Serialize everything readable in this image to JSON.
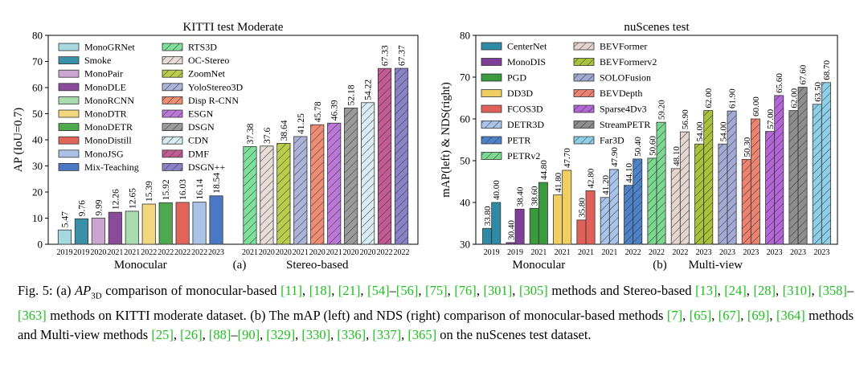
{
  "caption": {
    "fig_label": "Fig. 5:",
    "part_a_open": "(a)",
    "ap_symbol": "AP",
    "ap_subscript": "3D",
    "part_a_text_1": "comparison of monocular-based",
    "refs_mono_kitti": [
      "[11]",
      "[18]",
      "[21]",
      "[54]",
      "–",
      "[56]",
      "[75]",
      "[76]",
      "[301]",
      "[305]"
    ],
    "part_a_text_2": "methods and Stereo-based",
    "refs_stereo_kitti": [
      "[13]",
      "[24]",
      "[28]",
      "[310]",
      "[358]",
      "–",
      "[363]"
    ],
    "part_a_text_3": "methods on KITTI moderate dataset.",
    "part_b_text_1": "(b) The mAP (left) and NDS (right) comparison of monocular-based methods",
    "refs_mono_nus": [
      "[7]",
      "[65]",
      "[67]",
      "[69]",
      "[364]"
    ],
    "part_b_text_2": "methods and Multi-view methods",
    "refs_mv_nus": [
      "[25]",
      "[26]",
      "[88]",
      "–",
      "[90]",
      "[329]",
      "[330]",
      "[336]",
      "[337]",
      "[365]"
    ],
    "part_b_text_3": "on the nuScenes test dataset."
  },
  "chart_data": [
    {
      "type": "bar",
      "title": "KITTI test Moderate",
      "ylabel": "AP (IoU=0.7)",
      "ylim": [
        0,
        80
      ],
      "yticks": [
        0,
        10,
        20,
        30,
        40,
        50,
        60,
        70,
        80
      ],
      "panel_label": "(a)",
      "groups": [
        {
          "name": "Monocular",
          "start": 0,
          "end": 9
        },
        {
          "name": "Stereo-based",
          "start": 10,
          "end": 20
        }
      ],
      "bars": [
        {
          "name": "MonoGRNet",
          "year": "2019",
          "value": 5.47,
          "label": "5.47",
          "color": "#a6d8e0",
          "hatch": "none"
        },
        {
          "name": "Smoke",
          "year": "2019",
          "value": 9.76,
          "label": "9.76",
          "color": "#3a90a8",
          "hatch": "none"
        },
        {
          "name": "MonoPair",
          "year": "2020",
          "value": 9.99,
          "label": "9.99",
          "color": "#c9a5cf",
          "hatch": "none"
        },
        {
          "name": "MonoDLE",
          "year": "2021",
          "value": 12.26,
          "label": "12.26",
          "color": "#8a4b9a",
          "hatch": "none"
        },
        {
          "name": "MonoRCNN",
          "year": "2021",
          "value": 12.65,
          "label": "12.65",
          "color": "#a8dcae",
          "hatch": "none"
        },
        {
          "name": "MonoDTR",
          "year": "2022",
          "value": 15.39,
          "label": "15.39",
          "color": "#f3d77e",
          "hatch": "none"
        },
        {
          "name": "MonoDETR",
          "year": "2022",
          "value": 15.92,
          "label": "15.92",
          "color": "#4ea84e",
          "hatch": "none"
        },
        {
          "name": "MonoDistill",
          "year": "2022",
          "value": 16.03,
          "label": "16.03",
          "color": "#e0645a",
          "hatch": "none"
        },
        {
          "name": "MonoJSG",
          "year": "2022",
          "value": 16.14,
          "label": "16.14",
          "color": "#a9c2e5",
          "hatch": "none"
        },
        {
          "name": "Mix-Teaching",
          "year": "2023",
          "value": 18.54,
          "label": "18.54",
          "color": "#4a78c4",
          "hatch": "none"
        },
        {
          "name": "",
          "year": "",
          "value": 0.0,
          "label": "",
          "color": "#ffffff",
          "hatch": "none"
        },
        {
          "name": "RTS3D",
          "year": "2021",
          "value": 37.38,
          "label": "37.38",
          "color": "#7ee09a",
          "hatch": "diag"
        },
        {
          "name": "OC-Stereo",
          "year": "2020",
          "value": 37.6,
          "label": "37.6",
          "color": "#e8dcd6",
          "hatch": "diag"
        },
        {
          "name": "ZoomNet",
          "year": "2020",
          "value": 38.64,
          "label": "38.64",
          "color": "#b9cd4a",
          "hatch": "diag"
        },
        {
          "name": "YoloStereo3D",
          "year": "2021",
          "value": 41.25,
          "label": "41.25",
          "color": "#aab4d8",
          "hatch": "diag"
        },
        {
          "name": "Disp R-CNN",
          "year": "2020",
          "value": 45.78,
          "label": "45.78",
          "color": "#ee8c74",
          "hatch": "diag"
        },
        {
          "name": "ESGN",
          "year": "2021",
          "value": 46.39,
          "label": "46.39",
          "color": "#bb78d8",
          "hatch": "diag"
        },
        {
          "name": "DSGN",
          "year": "2020",
          "value": 52.18,
          "label": "52.18",
          "color": "#9a9a9a",
          "hatch": "diag"
        },
        {
          "name": "CDN",
          "year": "2020",
          "value": 54.22,
          "label": "54.22",
          "color": "#d8eef4",
          "hatch": "diag"
        },
        {
          "name": "DMF",
          "year": "2022",
          "value": 67.33,
          "label": "67.33",
          "color": "#c25b93",
          "hatch": "diag"
        },
        {
          "name": "DSGN++",
          "year": "2022",
          "value": 67.37,
          "label": "67.37",
          "color": "#8a82c8",
          "hatch": "diag"
        }
      ],
      "legend_col1": [
        "MonoGRNet",
        "Smoke",
        "MonoPair",
        "MonoDLE",
        "MonoRCNN",
        "MonoDTR",
        "MonoDETR",
        "MonoDistill",
        "MonoJSG",
        "Mix-Teaching"
      ],
      "legend_col2": [
        "RTS3D",
        "OC-Stereo",
        "ZoomNet",
        "YoloStereo3D",
        "Disp R-CNN",
        "ESGN",
        "DSGN",
        "CDN",
        "DMF",
        "DSGN++"
      ]
    },
    {
      "type": "bar",
      "title": "nuScenes test",
      "ylabel": "mAP(left) & NDS(right)",
      "ylim": [
        30,
        80
      ],
      "yticks": [
        30,
        40,
        50,
        60,
        70,
        80
      ],
      "panel_label": "(b)",
      "groups": [
        {
          "name": "Monocular",
          "start": 0,
          "end": 4
        },
        {
          "name": "Multi-view",
          "start": 5,
          "end": 14
        }
      ],
      "methods": [
        {
          "name": "CenterNet",
          "year": "2019",
          "map": 33.8,
          "nds": 40.0,
          "map_label": "33.80",
          "nds_label": "40.00",
          "color": "#2f8aa6",
          "hatch": "none"
        },
        {
          "name": "MonoDIS",
          "year": "2019",
          "map": 30.4,
          "nds": 38.4,
          "map_label": "30.40",
          "nds_label": "38.40",
          "color": "#80409a",
          "hatch": "none"
        },
        {
          "name": "PGD",
          "year": "2021",
          "map": 38.6,
          "nds": 44.8,
          "map_label": "38.60",
          "nds_label": "44.80",
          "color": "#3a9a3e",
          "hatch": "none"
        },
        {
          "name": "DD3D",
          "year": "2021",
          "map": 41.8,
          "nds": 47.7,
          "map_label": "41.80",
          "nds_label": "47.70",
          "color": "#f0cf62",
          "hatch": "none"
        },
        {
          "name": "FCOS3D",
          "year": "2021",
          "map": 35.8,
          "nds": 42.8,
          "map_label": "35.80",
          "nds_label": "42.80",
          "color": "#e0615a",
          "hatch": "none"
        },
        {
          "name": "DETR3D",
          "year": "2021",
          "map": 41.2,
          "nds": 47.9,
          "map_label": "41.20",
          "nds_label": "47.90",
          "color": "#a8c4ea",
          "hatch": "diag"
        },
        {
          "name": "PETR",
          "year": "2022",
          "map": 44.1,
          "nds": 50.4,
          "map_label": "44.10",
          "nds_label": "50.40",
          "color": "#4e82c8",
          "hatch": "diag"
        },
        {
          "name": "PETRv2",
          "year": "2022",
          "map": 50.6,
          "nds": 59.2,
          "map_label": "50.60",
          "nds_label": "59.20",
          "color": "#7ad890",
          "hatch": "diag"
        },
        {
          "name": "BEVFormer",
          "year": "2022",
          "map": 48.1,
          "nds": 56.9,
          "map_label": "48.10",
          "nds_label": "56.90",
          "color": "#e4d6ce",
          "hatch": "diag"
        },
        {
          "name": "BEVFormerv2",
          "year": "2023",
          "map": 54.0,
          "nds": 62.0,
          "map_label": "54.00",
          "nds_label": "62.00",
          "color": "#a8c23a",
          "hatch": "diag"
        },
        {
          "name": "SOLOFusion",
          "year": "2023",
          "map": 54.0,
          "nds": 61.9,
          "map_label": "54.00",
          "nds_label": "61.90",
          "color": "#a2aad4",
          "hatch": "diag"
        },
        {
          "name": "BEVDepth",
          "year": "2023",
          "map": 50.3,
          "nds": 60.0,
          "map_label": "50.30",
          "nds_label": "60.00",
          "color": "#ec8270",
          "hatch": "diag"
        },
        {
          "name": "Sparse4Dv3",
          "year": "2023",
          "map": 57.0,
          "nds": 65.6,
          "map_label": "57.00",
          "nds_label": "65.60",
          "color": "#b466d6",
          "hatch": "diag"
        },
        {
          "name": "StreamPETR",
          "year": "2023",
          "map": 62.0,
          "nds": 67.6,
          "map_label": "62.00",
          "nds_label": "67.60",
          "color": "#8e8e8e",
          "hatch": "diag"
        },
        {
          "name": "Far3D",
          "year": "2023",
          "map": 63.5,
          "nds": 68.7,
          "map_label": "63.50",
          "nds_label": "68.70",
          "color": "#8ccfe6",
          "hatch": "diag"
        }
      ],
      "legend_col1": [
        "CenterNet",
        "MonoDIS",
        "PGD",
        "DD3D",
        "FCOS3D",
        "DETR3D",
        "PETR",
        "PETRv2"
      ],
      "legend_col2": [
        "BEVFormer",
        "BEVFormerv2",
        "SOLOFusion",
        "BEVDepth",
        "Sparse4Dv3",
        "StreamPETR",
        "Far3D"
      ]
    }
  ]
}
